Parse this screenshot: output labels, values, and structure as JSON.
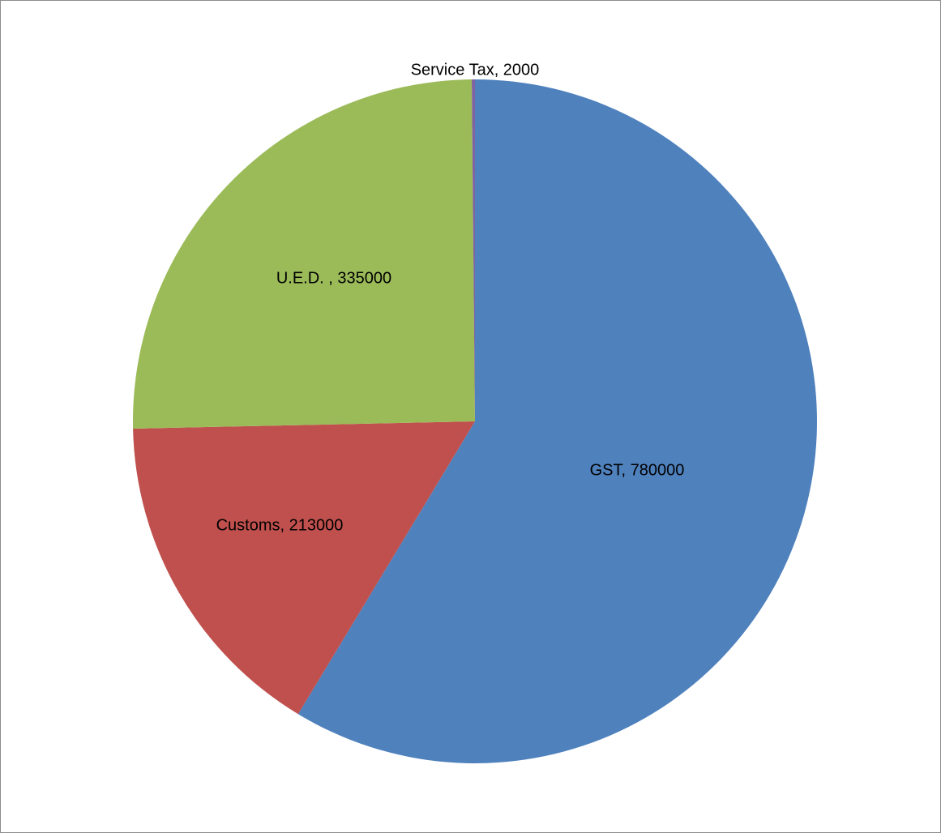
{
  "chart_data": {
    "type": "pie",
    "title": "",
    "start_angle_deg": 0,
    "direction": "clockwise",
    "legend": "none",
    "slices": [
      {
        "label": "GST",
        "value": 780000,
        "color": "#4F81BD",
        "data_label": "GST, 780000"
      },
      {
        "label": "Customs",
        "value": 213000,
        "color": "#C0504D",
        "data_label": "Customs, 213000"
      },
      {
        "label": "U.E.D. ",
        "value": 335000,
        "color": "#9BBB59",
        "data_label": "U.E.D. , 335000"
      },
      {
        "label": "Service Tax",
        "value": 2000,
        "color": "#8064A2",
        "data_label": "Service Tax, 2000"
      }
    ]
  }
}
